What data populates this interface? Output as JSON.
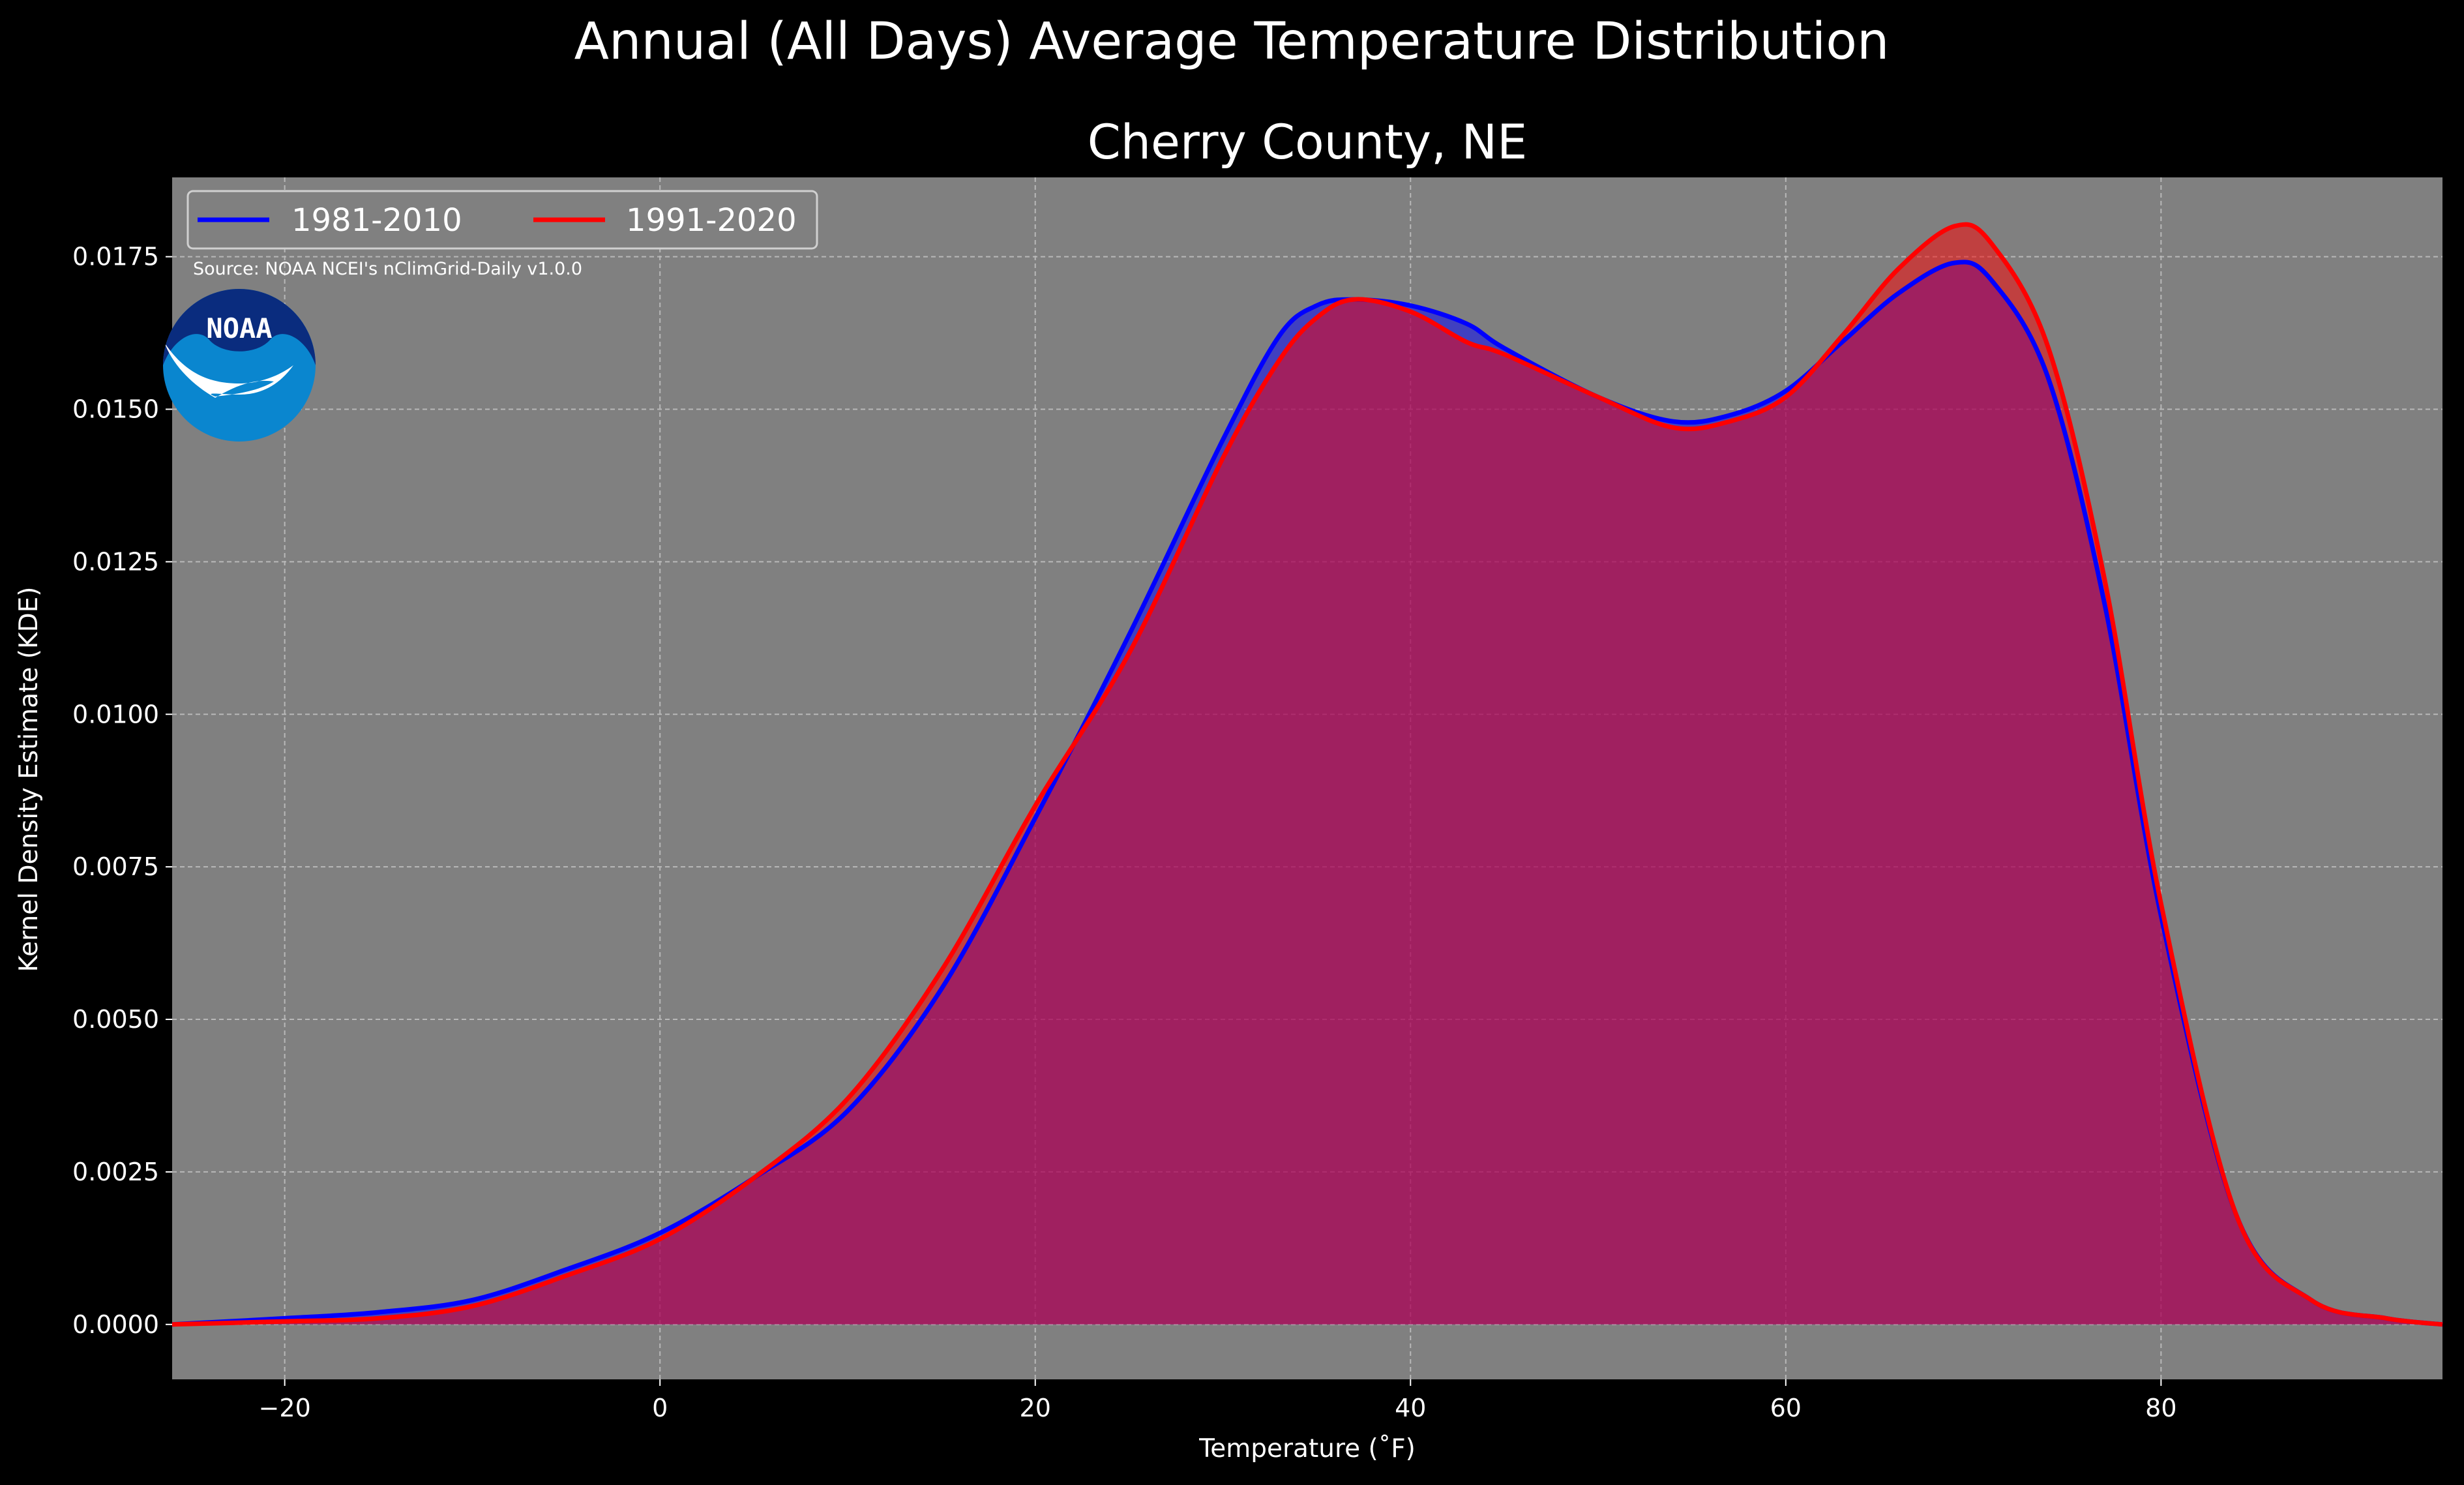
{
  "chart_data": {
    "type": "area",
    "suptitle": "Annual (All Days) Average Temperature Distribution",
    "title": "Cherry County, NE",
    "xlabel": "Temperature (˚F)",
    "ylabel": "Kernel Density Estimate (KDE)",
    "xlim": [
      -26,
      95
    ],
    "ylim": [
      -0.0009,
      0.0188
    ],
    "x_ticks": [
      -20,
      0,
      20,
      40,
      60,
      80
    ],
    "x_tick_labels": [
      "−20",
      "0",
      "20",
      "40",
      "60",
      "80"
    ],
    "y_ticks": [
      0,
      0.0025,
      0.005,
      0.0075,
      0.01,
      0.0125,
      0.015,
      0.0175
    ],
    "y_tick_labels": [
      "0.0000",
      "0.0025",
      "0.0050",
      "0.0075",
      "0.0100",
      "0.0125",
      "0.0150",
      "0.0175"
    ],
    "grid": true,
    "legend_position": "top-left",
    "background": "#808080",
    "source": "Source: NOAA NCEI's nClimGrid-Daily v1.0.0",
    "logo": {
      "icon": "noaa-logo",
      "text": "NOAA",
      "colors": {
        "top": "#0a2c7e",
        "bottom": "#0a86cf",
        "bird": "#ffffff"
      }
    },
    "series": [
      {
        "name": "1981-2010",
        "color": "#0000ff",
        "fill": "#0000ff",
        "x": [
          -26,
          -20,
          -15,
          -10,
          -5,
          0,
          5,
          10,
          15,
          20,
          25,
          30,
          33,
          35,
          37,
          40,
          43,
          45,
          50,
          54,
          57,
          60,
          63,
          66,
          69,
          71,
          74,
          77,
          80,
          84,
          88,
          92,
          95
        ],
        "y": [
          0.0,
          0.0001,
          0.0002,
          0.0004,
          0.0009,
          0.0015,
          0.0024,
          0.0035,
          0.0055,
          0.0083,
          0.0113,
          0.0145,
          0.0162,
          0.0167,
          0.0168,
          0.0167,
          0.0164,
          0.016,
          0.0152,
          0.0148,
          0.0149,
          0.0153,
          0.0161,
          0.0169,
          0.0174,
          0.0171,
          0.0155,
          0.0118,
          0.0067,
          0.0018,
          0.0004,
          0.0001,
          0.0
        ]
      },
      {
        "name": "1991-2020",
        "color": "#ff0000",
        "fill": "#ff0000",
        "x": [
          -26,
          -20,
          -15,
          -10,
          -5,
          0,
          5,
          10,
          15,
          20,
          25,
          30,
          33,
          35,
          37,
          40,
          43,
          45,
          50,
          54,
          57,
          60,
          63,
          66,
          69,
          71,
          74,
          77,
          80,
          84,
          88,
          92,
          95
        ],
        "y": [
          0.0,
          5e-05,
          0.0001,
          0.0003,
          0.0008,
          0.0014,
          0.0024,
          0.0037,
          0.0058,
          0.0085,
          0.011,
          0.0142,
          0.0158,
          0.0165,
          0.0168,
          0.0166,
          0.0161,
          0.0159,
          0.0152,
          0.0147,
          0.0148,
          0.0152,
          0.0162,
          0.0173,
          0.018,
          0.0177,
          0.016,
          0.0122,
          0.0069,
          0.0018,
          0.0004,
          0.0001,
          0.0
        ]
      }
    ]
  }
}
